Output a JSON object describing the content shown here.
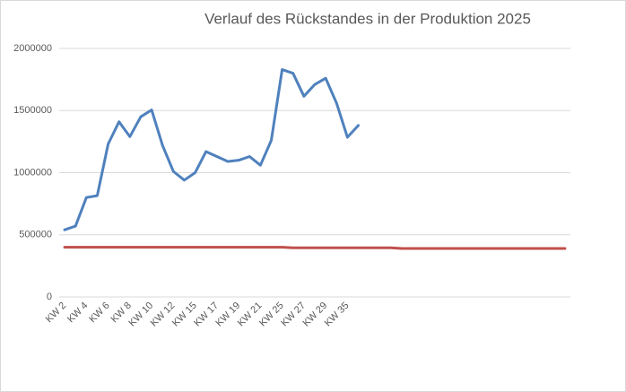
{
  "chart_data": {
    "type": "line",
    "title": "Verlauf des Rückstandes in der Produktion 2025",
    "categories": [
      "KW 2",
      null,
      "KW 4",
      null,
      "KW 6",
      null,
      "KW 8",
      null,
      "KW 10",
      null,
      "KW 12",
      null,
      "KW 15",
      null,
      "KW 17",
      null,
      "KW 19",
      null,
      "KW 21",
      null,
      "KW 25",
      null,
      "KW 27",
      null,
      "KW 29",
      null,
      "KW 35",
      null,
      null,
      null,
      null,
      null,
      null,
      null,
      null,
      null,
      null,
      null,
      null,
      null,
      null,
      null,
      null,
      null,
      null,
      null,
      null
    ],
    "series": [
      {
        "color": "#4f81bd",
        "values": [
          540000,
          570000,
          800000,
          815000,
          1230000,
          1410000,
          1290000,
          1450000,
          1505000,
          1220000,
          1010000,
          940000,
          1000000,
          1170000,
          1130000,
          1090000,
          1100000,
          1130000,
          1060000,
          1260000,
          1830000,
          1800000,
          1615000,
          1710000,
          1760000,
          1560000,
          1285000,
          1380000,
          null,
          null,
          null,
          null,
          null,
          null,
          null,
          null,
          null,
          null,
          null,
          null,
          null,
          null,
          null,
          null,
          null,
          null,
          null
        ]
      },
      {
        "color": "#c0504d",
        "values": [
          400000,
          400000,
          400000,
          400000,
          400000,
          400000,
          400000,
          400000,
          400000,
          400000,
          400000,
          400000,
          400000,
          400000,
          400000,
          400000,
          400000,
          400000,
          400000,
          400000,
          400000,
          395000,
          395000,
          395000,
          395000,
          395000,
          395000,
          395000,
          395000,
          395000,
          395000,
          390000,
          390000,
          390000,
          390000,
          390000,
          390000,
          390000,
          390000,
          390000,
          390000,
          390000,
          390000,
          390000,
          390000,
          390000,
          390000
        ]
      }
    ],
    "ylim": [
      0,
      2000000
    ],
    "yticks": [
      0,
      500000,
      1000000,
      1500000,
      2000000
    ],
    "grid": true
  }
}
